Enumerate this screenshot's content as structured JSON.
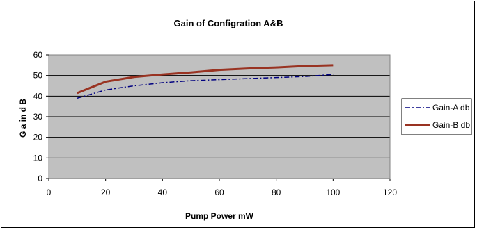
{
  "chart_data": {
    "type": "line",
    "title": "Gain of Configration A&B",
    "xlabel": "Pump Power mW",
    "ylabel": "G a in  d B",
    "xlim": [
      0,
      120
    ],
    "ylim": [
      0,
      60
    ],
    "xticks": [
      0,
      20,
      40,
      60,
      80,
      100,
      120
    ],
    "yticks": [
      0,
      10,
      20,
      30,
      40,
      50,
      60
    ],
    "grid": true,
    "legend_position": "right",
    "plot_background": "#c0c0c0",
    "series": [
      {
        "name": "Gain-A db",
        "color": "#000080",
        "style": "dash-dot",
        "x": [
          10,
          20,
          30,
          40,
          50,
          60,
          70,
          80,
          90,
          100
        ],
        "y": [
          39,
          43,
          45,
          46.5,
          47.5,
          48,
          48.5,
          49,
          49.5,
          50.5
        ]
      },
      {
        "name": "Gain-B db",
        "color": "#993322",
        "style": "solid",
        "x": [
          10,
          20,
          30,
          40,
          50,
          60,
          70,
          80,
          90,
          100
        ],
        "y": [
          41.5,
          47,
          49.3,
          50.5,
          51.5,
          52.7,
          53.4,
          53.9,
          54.6,
          55
        ]
      }
    ]
  }
}
